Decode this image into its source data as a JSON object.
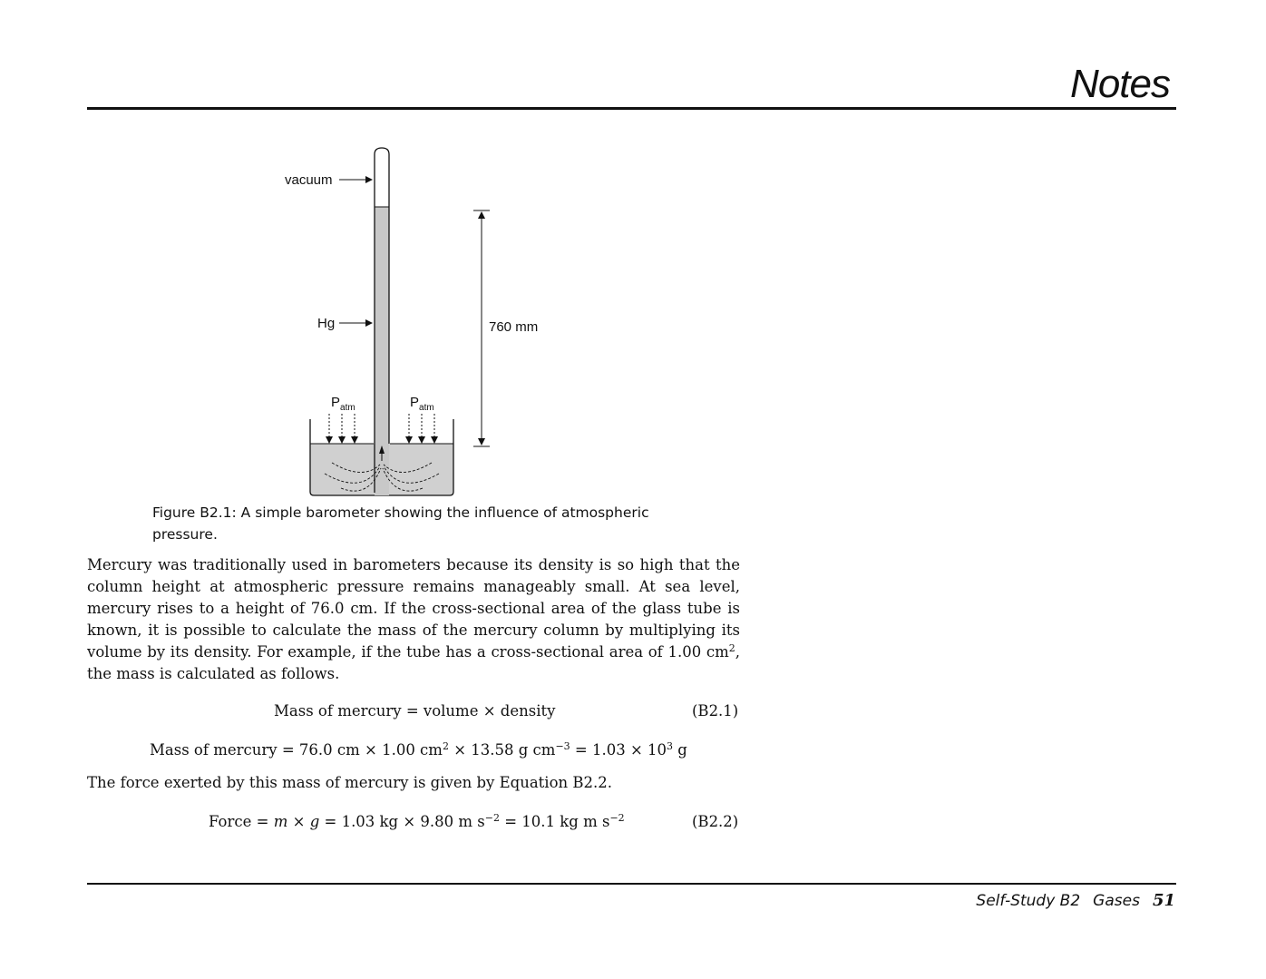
{
  "header": {
    "title": "Notes"
  },
  "figure": {
    "labels": {
      "vacuum": "vacuum",
      "hg": "Hg",
      "height": "760 mm",
      "p": "P",
      "p_sub": "atm"
    },
    "caption": "Figure B2.1: A simple barometer showing the influence of atmospheric pressure."
  },
  "body": {
    "paragraph": "Mercury was traditionally used in barometers because its density is so high that the column height at atmospheric pressure remains manageably small. At sea level, mercury rises to a height of 76.0 cm. If the cross-sectional area of the glass tube is known, it is possible to calculate the mass of the mercury column by multiplying its volume by its density. For example, if the tube has a cross-sectional area of 1.00 cm",
    "paragraph_sup": "2",
    "paragraph_end": ", the mass is calculated as follows.",
    "eq1": {
      "text": "Mass of mercury = volume × density",
      "number": "(B2.1)"
    },
    "eq_calc": {
      "a": "Mass of mercury = 76.0 cm × 1.00 cm",
      "a_sup": "2",
      "b": " × 13.58 g cm",
      "b_sup": "−3",
      "c": " = 1.03 × 10",
      "c_sup": "3",
      "d": " g"
    },
    "force_sentence": "The force exerted by this mass of mercury is given by Equation B2.2.",
    "eq2": {
      "a": "Force = ",
      "m": "m",
      "times": " × ",
      "g": "g",
      "b": " = 1.03 kg × 9.80 m s",
      "b_sup": "−2",
      "c": " = 10.1 kg m s",
      "c_sup": "−2",
      "number": "(B2.2)"
    }
  },
  "footer": {
    "book": "Self-Study B2",
    "section": "Gases",
    "page": "51"
  }
}
